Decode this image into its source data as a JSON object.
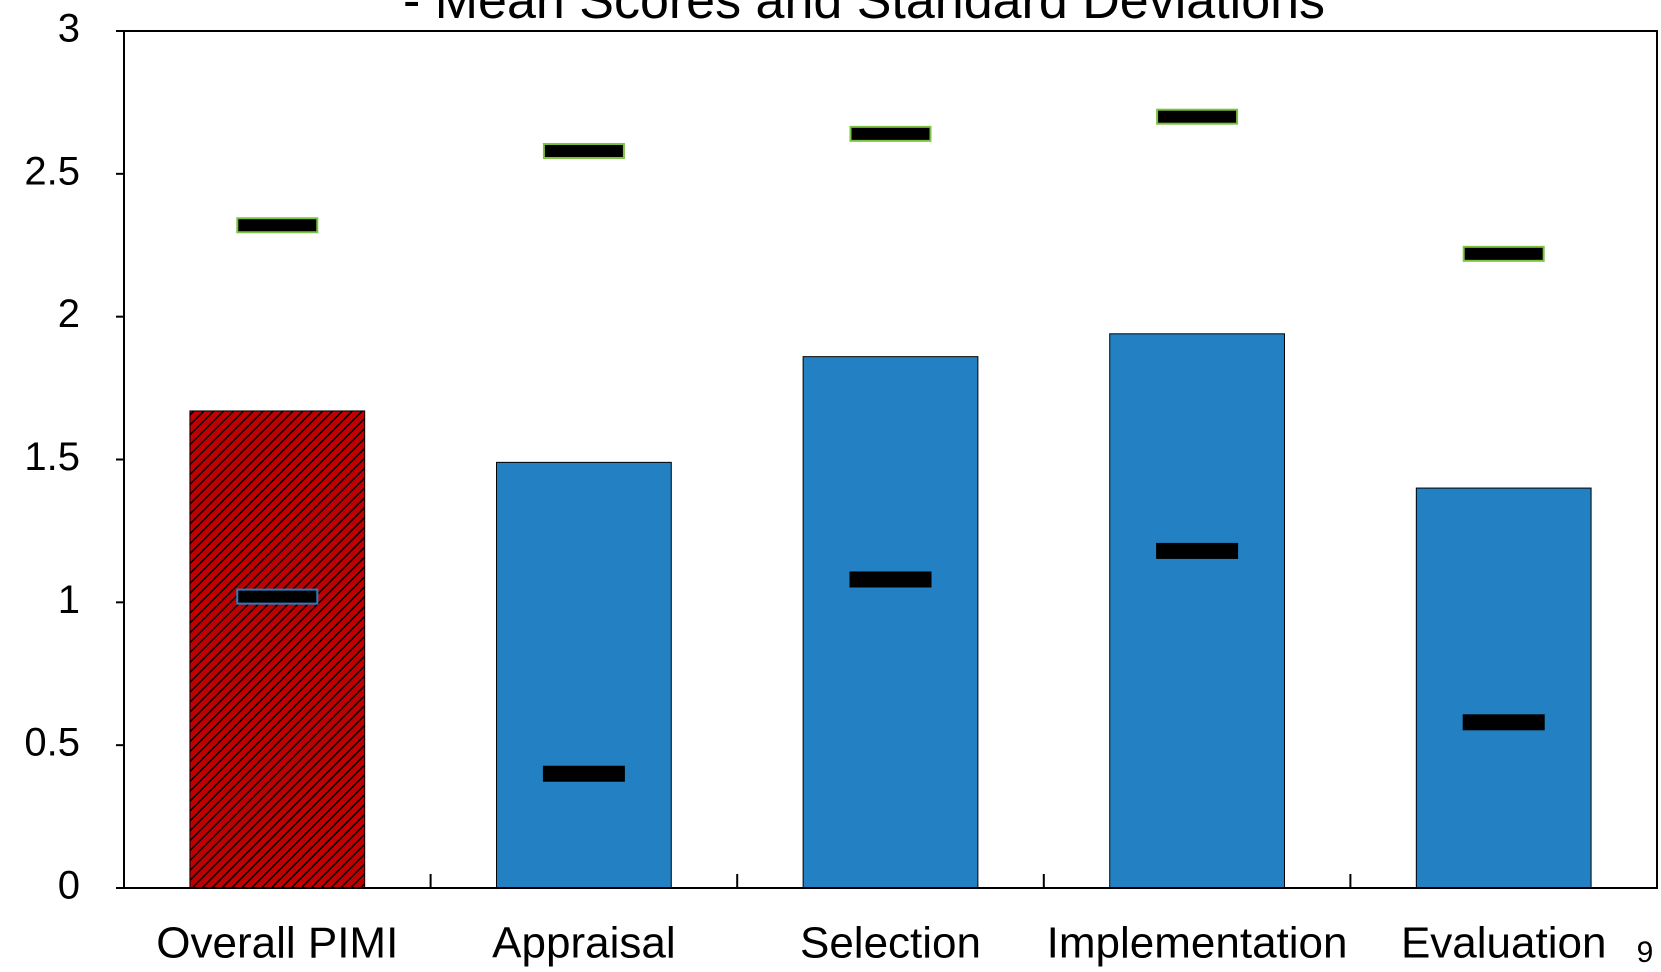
{
  "chart_data": {
    "type": "bar",
    "title": "- Mean Scores and Standard Deviations",
    "categories": [
      "Overall PIMI",
      "Appraisal",
      "Selection",
      "Implementation",
      "Evaluation"
    ],
    "values": [
      1.67,
      1.49,
      1.86,
      1.94,
      1.4
    ],
    "errors": [
      0.65,
      1.09,
      0.78,
      0.76,
      0.82
    ],
    "colors": [
      "#c00000",
      "#2381c3",
      "#2381c3",
      "#2381c3",
      "#2381c3"
    ],
    "hatch": [
      true,
      false,
      false,
      false,
      false
    ],
    "ylim": [
      0,
      3
    ],
    "yticks": [
      0,
      0.5,
      1,
      1.5,
      2,
      2.5,
      3
    ],
    "grid": false,
    "page_number": "9"
  }
}
